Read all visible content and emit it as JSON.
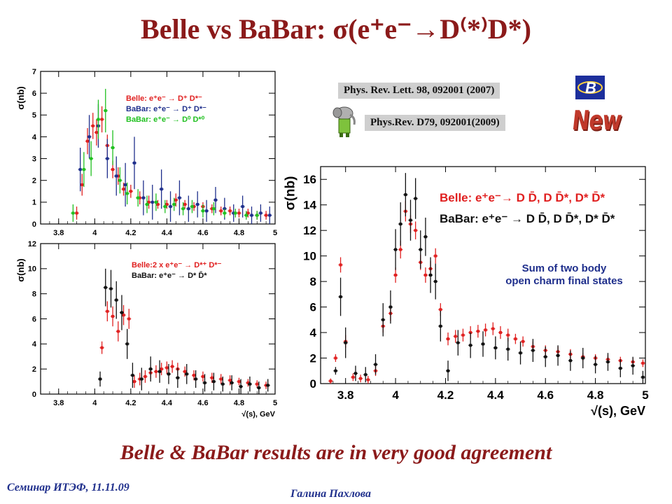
{
  "slide": {
    "title": "Belle vs BaBar: σ(e⁺e⁻→D⁽*⁾D*)",
    "ref1": "Phys. Rev. Lett. 98, 092001 (2007)",
    "ref2": "Phys.Rev. D79, 092001(2009)",
    "new_stamp": "New",
    "conclusion": "Belle & BaBar results are in very good agreement",
    "footer_left": "Семинар ИТЭФ, 11.11.09",
    "footer_right": "Галина Пахлова",
    "colors": {
      "title": "#8b1a1a",
      "footer": "#1f2f8c",
      "belle_logo_bg": "#1d2f9c"
    },
    "icons": [
      "belle-logo-icon",
      "babar-elephant-icon"
    ]
  },
  "chart_data": [
    {
      "id": "top-left",
      "type": "scatter",
      "ylabel": "σ(nb)",
      "xlabel": "",
      "xlim": [
        3.7,
        5.0
      ],
      "ylim": [
        0,
        7
      ],
      "xticks": [
        "3.8",
        "4",
        "4.2",
        "4.4",
        "4.6",
        "4.8",
        "5"
      ],
      "yticks": [
        "0",
        "1",
        "2",
        "3",
        "4",
        "5",
        "6",
        "7"
      ],
      "legend": [
        "Belle: e⁺e⁻ → D⁺ D*⁻",
        "BaBar: e⁺e⁻ → D⁺ D*⁻",
        "BaBar: e⁺e⁻ → D⁰ D*⁰"
      ],
      "legend_position": "top-right",
      "series": [
        {
          "name": "Belle: e⁺e⁻ → D⁺ D*⁻",
          "color": "#e02020",
          "x": [
            3.9,
            3.93,
            3.96,
            3.99,
            4.01,
            4.04,
            4.07,
            4.1,
            4.13,
            4.16,
            4.2,
            4.25,
            4.3,
            4.35,
            4.4,
            4.45,
            4.5,
            4.55,
            4.6,
            4.65,
            4.7,
            4.75,
            4.8,
            4.85,
            4.9,
            4.95
          ],
          "y": [
            0.5,
            1.8,
            3.8,
            4.5,
            4.2,
            4.8,
            3.6,
            2.5,
            2.2,
            1.6,
            1.5,
            1.2,
            1.0,
            0.9,
            0.9,
            1.1,
            0.9,
            0.8,
            0.8,
            0.7,
            0.6,
            0.6,
            0.5,
            0.5,
            0.4,
            0.4
          ],
          "err": [
            0.3,
            0.5,
            0.6,
            0.6,
            0.6,
            0.6,
            0.5,
            0.4,
            0.4,
            0.3,
            0.3,
            0.3,
            0.3,
            0.2,
            0.2,
            0.3,
            0.2,
            0.2,
            0.2,
            0.2,
            0.2,
            0.2,
            0.2,
            0.2,
            0.2,
            0.2
          ]
        },
        {
          "name": "BaBar: e⁺e⁻ → D⁺ D*⁻",
          "color": "#1f2f8c",
          "x": [
            3.92,
            3.97,
            4.02,
            4.07,
            4.12,
            4.17,
            4.22,
            4.27,
            4.32,
            4.37,
            4.42,
            4.47,
            4.52,
            4.57,
            4.62,
            4.67,
            4.72,
            4.77,
            4.82,
            4.87,
            4.92,
            4.97
          ],
          "y": [
            2.5,
            4.0,
            4.5,
            3.0,
            2.2,
            1.8,
            2.8,
            1.2,
            1.0,
            1.6,
            0.8,
            1.2,
            0.7,
            0.9,
            0.6,
            1.1,
            0.7,
            0.5,
            0.8,
            0.4,
            0.5,
            0.4
          ],
          "err": [
            1.0,
            1.0,
            1.0,
            0.9,
            0.9,
            1.0,
            1.2,
            0.8,
            0.8,
            0.9,
            0.7,
            0.8,
            0.6,
            0.6,
            0.5,
            0.6,
            0.5,
            0.4,
            0.5,
            0.4,
            0.4,
            0.4
          ]
        },
        {
          "name": "BaBar: e⁺e⁻ → D⁰ D*⁰",
          "color": "#20c020",
          "x": [
            3.88,
            3.94,
            3.98,
            4.02,
            4.06,
            4.1,
            4.14,
            4.18,
            4.24,
            4.29,
            4.34,
            4.39,
            4.44,
            4.49,
            4.54,
            4.6,
            4.66,
            4.72,
            4.78,
            4.84,
            4.9
          ],
          "y": [
            0.5,
            2.5,
            3.0,
            4.8,
            5.2,
            3.5,
            2.0,
            1.4,
            1.2,
            0.9,
            1.0,
            0.8,
            0.9,
            0.7,
            0.8,
            0.6,
            0.7,
            0.5,
            0.5,
            0.4,
            0.4
          ],
          "err": [
            0.4,
            0.8,
            0.8,
            0.9,
            1.0,
            0.8,
            0.6,
            0.5,
            0.4,
            0.4,
            0.4,
            0.3,
            0.3,
            0.3,
            0.3,
            0.3,
            0.3,
            0.2,
            0.2,
            0.2,
            0.2
          ]
        }
      ]
    },
    {
      "id": "bottom-left",
      "type": "scatter",
      "ylabel": "σ(nb)",
      "xlabel": "√(s), GeV",
      "xlim": [
        3.7,
        5.0
      ],
      "ylim": [
        0,
        12
      ],
      "xticks": [
        "3.8",
        "4",
        "4.2",
        "4.4",
        "4.6",
        "4.8",
        "5"
      ],
      "yticks": [
        "0",
        "2",
        "4",
        "6",
        "8",
        "10",
        "12"
      ],
      "legend": [
        "Belle:2 x e⁺e⁻ → D*⁺ D*⁻",
        "BaBar: e⁺e⁻ → D* D̄*"
      ],
      "legend_position": "top-right",
      "series": [
        {
          "name": "Belle:2 x e⁺e⁻ → D*⁺ D*⁻",
          "color": "#e02020",
          "x": [
            4.04,
            4.07,
            4.1,
            4.13,
            4.16,
            4.19,
            4.22,
            4.25,
            4.28,
            4.31,
            4.34,
            4.37,
            4.4,
            4.43,
            4.46,
            4.5,
            4.55,
            4.6,
            4.65,
            4.7,
            4.75,
            4.8,
            4.85,
            4.9,
            4.95
          ],
          "y": [
            3.7,
            6.6,
            6.2,
            5.0,
            6.3,
            6.0,
            1.0,
            1.2,
            1.4,
            1.7,
            1.8,
            2.0,
            2.1,
            2.2,
            2.0,
            1.8,
            1.5,
            1.4,
            1.3,
            1.2,
            1.1,
            1.0,
            0.9,
            0.8,
            0.7
          ],
          "err": [
            0.5,
            0.8,
            0.8,
            0.8,
            0.8,
            0.8,
            0.5,
            0.5,
            0.5,
            0.5,
            0.5,
            0.5,
            0.5,
            0.5,
            0.5,
            0.4,
            0.4,
            0.4,
            0.4,
            0.4,
            0.4,
            0.3,
            0.3,
            0.3,
            0.3
          ]
        },
        {
          "name": "BaBar: e⁺e⁻ → D* D̄*",
          "color": "#111111",
          "x": [
            4.03,
            4.06,
            4.09,
            4.12,
            4.15,
            4.18,
            4.21,
            4.26,
            4.31,
            4.36,
            4.41,
            4.46,
            4.51,
            4.56,
            4.61,
            4.66,
            4.71,
            4.76,
            4.81,
            4.86,
            4.91,
            4.96
          ],
          "y": [
            1.2,
            8.5,
            8.4,
            7.5,
            6.5,
            4.0,
            1.5,
            1.2,
            2.0,
            1.8,
            1.6,
            1.3,
            1.6,
            1.2,
            0.9,
            1.0,
            0.8,
            0.9,
            0.6,
            0.8,
            0.5,
            0.7
          ],
          "err": [
            0.6,
            1.5,
            1.5,
            1.5,
            1.4,
            1.2,
            1.0,
            0.9,
            1.0,
            0.9,
            0.8,
            0.8,
            0.8,
            0.7,
            0.7,
            0.7,
            0.6,
            0.6,
            0.6,
            0.6,
            0.5,
            0.5
          ]
        }
      ]
    },
    {
      "id": "right",
      "type": "scatter",
      "ylabel": "σ(nb)",
      "xlabel": "√(s), GeV",
      "xlim": [
        3.7,
        5.0
      ],
      "ylim": [
        0,
        17
      ],
      "xticks": [
        "3.8",
        "4",
        "4.2",
        "4.4",
        "4.6",
        "4.8",
        "5"
      ],
      "yticks": [
        "0",
        "2",
        "4",
        "6",
        "8",
        "10",
        "12",
        "14",
        "16"
      ],
      "legend": [
        "Belle: e⁺e⁻→ D D̄, D D̄*, D* D̄*",
        "BaBar: e⁺e⁻ → D D̄, D D̄*, D* D̄*"
      ],
      "legend_position": "top-right",
      "annotation": "Sum of two body open charm final states",
      "series": [
        {
          "name": "Belle: e⁺e⁻→ D D̄, D D̄*, D* D̄*",
          "color": "#e02020",
          "x": [
            3.74,
            3.76,
            3.78,
            3.8,
            3.83,
            3.86,
            3.89,
            3.92,
            3.95,
            3.98,
            4.0,
            4.02,
            4.04,
            4.06,
            4.08,
            4.1,
            4.12,
            4.14,
            4.16,
            4.18,
            4.21,
            4.24,
            4.27,
            4.3,
            4.33,
            4.36,
            4.39,
            4.42,
            4.45,
            4.48,
            4.51,
            4.55,
            4.6,
            4.65,
            4.7,
            4.75,
            4.8,
            4.85,
            4.9,
            4.95,
            4.99
          ],
          "y": [
            0.2,
            2.0,
            9.3,
            3.3,
            0.5,
            0.4,
            0.3,
            1.0,
            4.5,
            5.5,
            8.5,
            10.5,
            13.5,
            12.5,
            12.0,
            9.5,
            8.5,
            9.0,
            10.0,
            5.8,
            3.5,
            3.7,
            3.8,
            4.0,
            4.1,
            4.2,
            4.3,
            4.0,
            3.8,
            3.5,
            3.3,
            2.9,
            2.6,
            2.5,
            2.3,
            2.1,
            2.0,
            1.9,
            1.8,
            1.7,
            1.6
          ],
          "err": [
            0.2,
            0.3,
            0.6,
            0.5,
            0.3,
            0.3,
            0.3,
            0.4,
            0.5,
            0.6,
            0.6,
            0.7,
            0.8,
            0.7,
            0.7,
            0.6,
            0.6,
            0.6,
            0.6,
            0.5,
            0.5,
            0.5,
            0.5,
            0.5,
            0.5,
            0.5,
            0.5,
            0.5,
            0.5,
            0.4,
            0.4,
            0.4,
            0.4,
            0.4,
            0.4,
            0.3,
            0.3,
            0.3,
            0.3,
            0.3,
            0.3
          ]
        },
        {
          "name": "BaBar: e⁺e⁻ → D D̄, D D̄*, D* D̄*",
          "color": "#111111",
          "x": [
            3.76,
            3.78,
            3.8,
            3.84,
            3.88,
            3.92,
            3.95,
            3.98,
            4.0,
            4.02,
            4.04,
            4.06,
            4.08,
            4.1,
            4.12,
            4.14,
            4.16,
            4.18,
            4.21,
            4.25,
            4.3,
            4.35,
            4.4,
            4.45,
            4.5,
            4.55,
            4.6,
            4.65,
            4.7,
            4.75,
            4.8,
            4.85,
            4.9,
            4.95,
            4.99
          ],
          "y": [
            1.0,
            6.8,
            3.2,
            0.8,
            0.7,
            1.5,
            5.0,
            6.0,
            10.5,
            12.5,
            14.8,
            12.8,
            14.5,
            10.5,
            11.5,
            8.5,
            8.0,
            4.5,
            1.0,
            3.2,
            3.0,
            3.1,
            2.8,
            2.7,
            2.4,
            2.6,
            2.1,
            2.2,
            1.8,
            2.0,
            1.5,
            1.7,
            1.2,
            1.4,
            0.5
          ],
          "err": [
            0.3,
            1.5,
            1.2,
            0.6,
            0.6,
            0.8,
            1.3,
            1.3,
            1.6,
            1.7,
            1.7,
            1.6,
            1.6,
            1.5,
            1.5,
            1.4,
            1.4,
            1.2,
            0.8,
            1.0,
            1.0,
            1.0,
            0.9,
            0.9,
            0.9,
            0.9,
            0.8,
            0.8,
            0.8,
            0.8,
            0.7,
            0.7,
            0.7,
            0.7,
            0.5
          ]
        }
      ]
    }
  ]
}
